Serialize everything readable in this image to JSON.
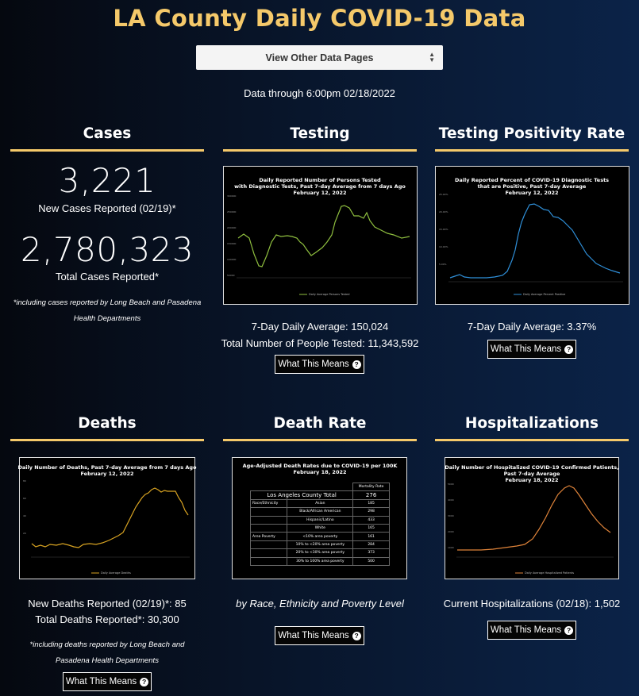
{
  "page": {
    "title": "LA County Daily COVID-19 Data",
    "select_label": "View Other Data Pages",
    "data_through": "Data through 6:00pm 02/18/2022",
    "accent_color": "#f5c96a",
    "button_label": "What This Means"
  },
  "cases": {
    "title": "Cases",
    "new_cases_value": "3,221",
    "new_cases_label": "New Cases Reported (02/19)*",
    "total_value": "2,780,323",
    "total_label": "Total Cases Reported*",
    "note_line1": "*including cases reported by Long Beach and Pasadena",
    "note_line2": "Health Departments"
  },
  "testing": {
    "title": "Testing",
    "chart_title": [
      "Daily Reported Number of Persons Tested",
      "with Diagnostic Tests, Past 7-day Average from 7 days Ago",
      "February 12, 2022"
    ],
    "legend": "Daily Average Persons Tested",
    "average": "7-Day Daily Average: 150,024",
    "total": "Total Number of People Tested: 11,343,592"
  },
  "positivity": {
    "title": "Testing Positivity Rate",
    "chart_title": [
      "Daily Reported Percent of COVID-19 Diagnostic Tests",
      "that are Positive, Past 7-day Average",
      "February 12, 2022"
    ],
    "legend": "Daily Average Percent Positive",
    "average": "7-Day Daily Average: 3.37%"
  },
  "deaths": {
    "title": "Deaths",
    "chart_title": [
      "Daily Number of Deaths, Past 7-day Average from 7 days Ago",
      "February 12, 2022"
    ],
    "legend": "Daily Average Deaths",
    "new": "New Deaths Reported (02/19)*: 85",
    "total": "Total Deaths Reported*: 30,300",
    "note_line1": "*including deaths reported by Long Beach and",
    "note_line2": "Pasadena Health Departments"
  },
  "death_rate": {
    "title": "Death Rate",
    "chart_title": [
      "Age-Adjusted Death Rates due to COVID-19 per 100K",
      "February 18, 2022"
    ],
    "col_header": "Mortality Rate",
    "total_label": "Los Angeles County Total",
    "total_value": "276",
    "group_race": "Race/Ethnicity",
    "group_poverty": "Area Poverty",
    "rows": [
      {
        "label": "Asian",
        "value": "185"
      },
      {
        "label": "Black/African American",
        "value": "298"
      },
      {
        "label": "Hispanic/Latino",
        "value": "433"
      },
      {
        "label": "White",
        "value": "165"
      },
      {
        "label": "<10% area poverty",
        "value": "161"
      },
      {
        "label": "10% to <20% area poverty",
        "value": "284"
      },
      {
        "label": "20% to <30% area poverty",
        "value": "373"
      },
      {
        "label": "30% to 100% area poverty",
        "value": "500"
      }
    ],
    "caption": "by Race, Ethnicity and Poverty Level"
  },
  "hospital": {
    "title": "Hospitalizations",
    "chart_title": [
      "Daily Number of Hospitalized COVID-19 Confirmed Patients,",
      "Past 7-day Average",
      "February 18, 2022"
    ],
    "legend": "Daily Average Hospitalized Patients",
    "current": "Current Hospitalizations (02/18): 1,502"
  },
  "colors": {
    "testing_line": "#8fbf3f",
    "positivity_line": "#2f8fd8",
    "deaths_line": "#d9a422",
    "hospital_line": "#e0843a"
  }
}
